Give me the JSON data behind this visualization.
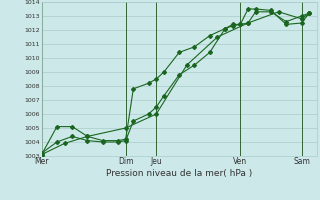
{
  "xlabel": "Pression niveau de la mer( hPa )",
  "background_color": "#cce8e8",
  "grid_color": "#aacccc",
  "line_color": "#1a6620",
  "ylim": [
    1003,
    1014
  ],
  "yticks": [
    1003,
    1004,
    1005,
    1006,
    1007,
    1008,
    1009,
    1010,
    1011,
    1012,
    1013,
    1014
  ],
  "day_labels": [
    "Mer",
    "Dim",
    "Jeu",
    "Ven",
    "Sam"
  ],
  "day_positions": [
    0.0,
    5.5,
    7.5,
    13.0,
    17.0
  ],
  "day_vlines": [
    0.0,
    5.5,
    7.5,
    13.0,
    17.0
  ],
  "xlim": [
    0,
    18
  ],
  "line1_x": [
    0,
    1,
    2,
    3,
    4,
    5,
    5.5,
    6,
    7,
    7.5,
    8,
    9,
    10,
    11,
    12,
    12.5,
    13,
    13.5,
    14,
    15,
    16,
    17,
    17.5
  ],
  "line1_y": [
    1003.2,
    1004.0,
    1004.4,
    1004.1,
    1004.0,
    1004.0,
    1004.1,
    1005.5,
    1006.0,
    1006.5,
    1007.3,
    1008.8,
    1009.5,
    1010.4,
    1012.1,
    1012.4,
    1012.4,
    1012.5,
    1013.3,
    1013.3,
    1012.6,
    1013.0,
    1013.2
  ],
  "line2_x": [
    0,
    1,
    2,
    3,
    4,
    5,
    5.5,
    6,
    7,
    7.5,
    8,
    9,
    10,
    11,
    12,
    12.5,
    13,
    13.5,
    14,
    15,
    16,
    17,
    17.5
  ],
  "line2_y": [
    1003.1,
    1005.1,
    1005.1,
    1004.4,
    1004.1,
    1004.1,
    1004.2,
    1007.8,
    1008.2,
    1008.5,
    1009.0,
    1010.4,
    1010.8,
    1011.6,
    1012.1,
    1012.3,
    1012.4,
    1013.5,
    1013.5,
    1013.4,
    1012.4,
    1012.5,
    1013.2
  ],
  "line3_x": [
    0,
    1.5,
    3,
    5.5,
    7.5,
    9.5,
    11.5,
    13.5,
    15.5,
    17.0,
    17.5
  ],
  "line3_y": [
    1003.1,
    1003.9,
    1004.4,
    1005.0,
    1006.0,
    1009.5,
    1011.5,
    1012.5,
    1013.3,
    1012.8,
    1013.2
  ]
}
